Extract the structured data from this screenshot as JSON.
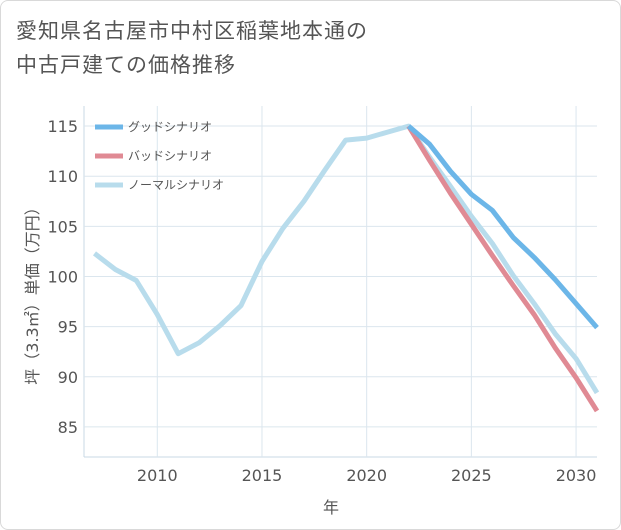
{
  "title_lines": [
    "愛知県名古屋市中村区稲葉地本通の",
    "中古戸建ての価格推移"
  ],
  "chart_data": {
    "type": "line",
    "title": "愛知県名古屋市中村区稲葉地本通の中古戸建ての価格推移",
    "xlabel": "年",
    "ylabel": "坪（3.3㎡）単価（万円）",
    "xlim": [
      2006.5,
      2031
    ],
    "ylim": [
      82,
      117
    ],
    "xticks": [
      2010,
      2015,
      2020,
      2025,
      2030
    ],
    "yticks": [
      85,
      90,
      95,
      100,
      105,
      110,
      115
    ],
    "grid": true,
    "legend_position": "top-left",
    "series": [
      {
        "name": "グッドシナリオ",
        "color": "#6cb6e8",
        "x": [
          2022,
          2023,
          2024,
          2025,
          2026,
          2027,
          2028,
          2029,
          2030,
          2031
        ],
        "values": [
          115.0,
          113.2,
          110.5,
          108.2,
          106.6,
          103.9,
          101.9,
          99.7,
          97.3,
          94.9
        ]
      },
      {
        "name": "バッドシナリオ",
        "color": "#e08a94",
        "x": [
          2022,
          2023,
          2024,
          2025,
          2026,
          2027,
          2028,
          2029,
          2030,
          2031
        ],
        "values": [
          115.0,
          111.6,
          108.3,
          105.2,
          102.1,
          99.1,
          96.2,
          92.9,
          89.9,
          86.6
        ]
      },
      {
        "name": "ノーマルシナリオ",
        "color": "#b8dcec",
        "x": [
          2007,
          2008,
          2009,
          2010,
          2011,
          2012,
          2013,
          2014,
          2015,
          2016,
          2017,
          2018,
          2019,
          2020,
          2021,
          2022,
          2023,
          2024,
          2025,
          2026,
          2027,
          2028,
          2029,
          2030,
          2031
        ],
        "values": [
          102.3,
          100.7,
          99.6,
          96.2,
          92.3,
          93.4,
          95.1,
          97.1,
          101.5,
          104.8,
          107.5,
          110.6,
          113.6,
          113.8,
          114.4,
          115.0,
          111.9,
          109.0,
          106.0,
          103.3,
          100.1,
          97.3,
          94.3,
          91.8,
          88.4
        ]
      }
    ]
  }
}
